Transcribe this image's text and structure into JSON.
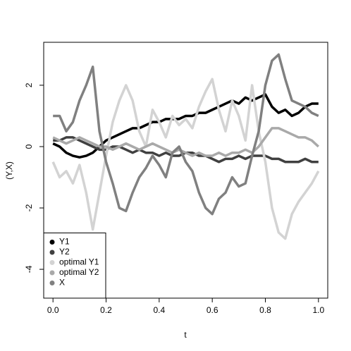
{
  "chart_data": {
    "type": "line",
    "xlabel": "t",
    "ylabel": "(Y,X)",
    "x": [
      0,
      0.025,
      0.05,
      0.075,
      0.1,
      0.125,
      0.15,
      0.175,
      0.2,
      0.225,
      0.25,
      0.275,
      0.3,
      0.325,
      0.35,
      0.375,
      0.4,
      0.425,
      0.45,
      0.475,
      0.5,
      0.525,
      0.55,
      0.575,
      0.6,
      0.625,
      0.65,
      0.675,
      0.7,
      0.725,
      0.75,
      0.775,
      0.8,
      0.825,
      0.85,
      0.875,
      0.9,
      0.925,
      0.95,
      0.975,
      1
    ],
    "series": [
      {
        "name": "Y1",
        "color": "#000000",
        "values": [
          0.1,
          0.0,
          -0.2,
          -0.3,
          -0.35,
          -0.3,
          -0.2,
          0.0,
          0.2,
          0.3,
          0.4,
          0.5,
          0.6,
          0.6,
          0.7,
          0.8,
          0.8,
          0.9,
          0.9,
          0.9,
          1.0,
          1.0,
          1.1,
          1.1,
          1.2,
          1.3,
          1.4,
          1.5,
          1.4,
          1.6,
          1.5,
          1.6,
          1.7,
          1.3,
          1.1,
          1.2,
          1.0,
          1.1,
          1.3,
          1.4,
          1.4
        ]
      },
      {
        "name": "Y2",
        "color": "#404040",
        "values": [
          0.2,
          0.2,
          0.3,
          0.3,
          0.2,
          0.1,
          0.0,
          -0.1,
          -0.1,
          0.0,
          0.0,
          -0.1,
          -0.2,
          -0.1,
          -0.2,
          -0.2,
          -0.3,
          -0.2,
          -0.3,
          -0.3,
          -0.2,
          -0.2,
          -0.3,
          -0.3,
          -0.4,
          -0.5,
          -0.4,
          -0.4,
          -0.3,
          -0.4,
          -0.3,
          -0.3,
          -0.3,
          -0.4,
          -0.4,
          -0.5,
          -0.5,
          -0.5,
          -0.4,
          -0.5,
          -0.5
        ]
      },
      {
        "name": "optimal Y1",
        "color": "#d3d3d3",
        "values": [
          -0.5,
          -1.0,
          -0.8,
          -1.2,
          -0.6,
          -1.5,
          -2.7,
          -1.5,
          -0.3,
          0.8,
          1.5,
          2.0,
          1.5,
          0.5,
          0.0,
          1.2,
          0.8,
          0.3,
          1.0,
          0.7,
          0.9,
          0.6,
          1.3,
          1.8,
          2.2,
          1.2,
          0.5,
          1.5,
          1.0,
          0.2,
          2.0,
          0.5,
          -0.5,
          -2.0,
          -2.8,
          -3.0,
          -2.2,
          -1.8,
          -1.5,
          -1.2,
          -0.8
        ]
      },
      {
        "name": "optimal Y2",
        "color": "#a9a9a9",
        "values": [
          0.3,
          0.2,
          0.1,
          0.2,
          0.3,
          0.2,
          0.1,
          0.0,
          0.0,
          -0.1,
          0.0,
          0.1,
          0.0,
          -0.1,
          0.0,
          0.1,
          0.0,
          -0.1,
          -0.2,
          -0.1,
          -0.2,
          -0.3,
          -0.2,
          -0.3,
          -0.3,
          -0.2,
          -0.3,
          -0.2,
          -0.2,
          -0.1,
          -0.2,
          0.0,
          0.3,
          0.6,
          0.6,
          0.5,
          0.4,
          0.3,
          0.3,
          0.2,
          0.0
        ]
      },
      {
        "name": "X",
        "color": "#808080",
        "values": [
          1.0,
          1.0,
          0.5,
          0.8,
          1.5,
          2.0,
          2.6,
          0.5,
          -0.5,
          -1.2,
          -2.0,
          -2.1,
          -1.5,
          -1.0,
          -0.7,
          -0.3,
          -0.6,
          -1.0,
          -0.2,
          0.0,
          -0.5,
          -0.8,
          -1.5,
          -2.0,
          -2.2,
          -1.7,
          -1.5,
          -1.0,
          -1.3,
          -1.2,
          -0.3,
          0.5,
          2.0,
          2.8,
          3.0,
          2.2,
          1.5,
          1.4,
          1.3,
          1.1,
          1.0
        ]
      }
    ],
    "xlim": [
      -0.035,
      1.035
    ],
    "xticks": [
      {
        "value": 0,
        "label": "0.0"
      },
      0.2,
      0.4,
      0.6,
      0.8,
      {
        "value": 1,
        "label": "1.0"
      }
    ],
    "ylim": [
      -4.94,
      3.4
    ],
    "yticks": [
      -4,
      -2,
      0,
      2
    ],
    "legend": "bottomleft"
  }
}
